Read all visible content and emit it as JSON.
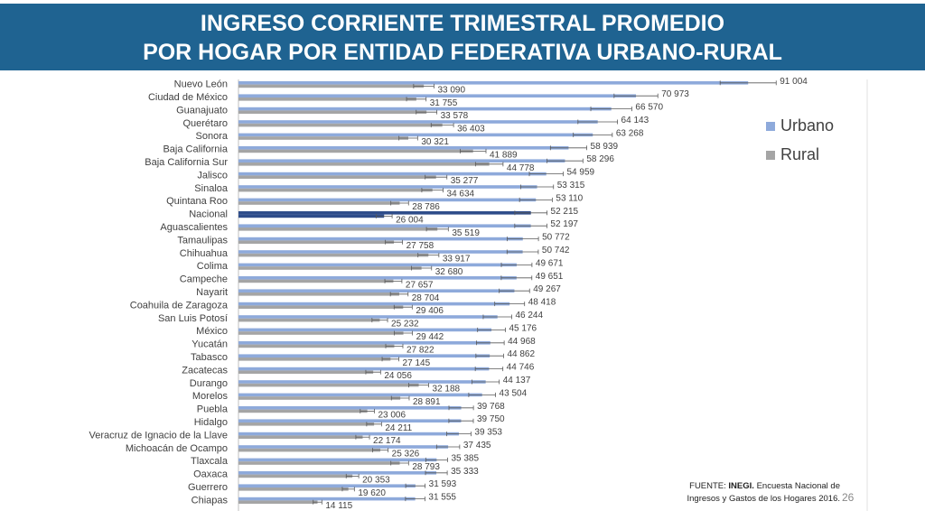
{
  "slide": {
    "title_line1": "INGRESO CORRIENTE TRIMESTRAL PROMEDIO",
    "title_line2": "POR HOGAR POR ENTIDAD FEDERATIVA URBANO-RURAL",
    "source_prefix": "FUENTE:",
    "source_org": "INEGI.",
    "source_text": "Encuesta Nacional de Ingresos y Gastos de los Hogares 2016.",
    "page_number": "26"
  },
  "chart_data": {
    "type": "bar",
    "orientation": "horizontal",
    "title": "",
    "xlabel": "",
    "ylabel": "",
    "xlim": [
      0,
      100000
    ],
    "grid": false,
    "error_bars": true,
    "legend_position": "right",
    "categories": [
      "Nuevo León",
      "Ciudad de México",
      "Guanajuato",
      "Querétaro",
      "Sonora",
      "Baja California",
      "Baja California Sur",
      "Jalisco",
      "Sinaloa",
      "Quintana Roo",
      "Nacional",
      "Aguascalientes",
      "Tamaulipas",
      "Chihuahua",
      "Colima",
      "Campeche",
      "Nayarit",
      "Coahuila de Zaragoza",
      "San Luis Potosí",
      "México",
      "Yucatán",
      "Tabasco",
      "Zacatecas",
      "Durango",
      "Morelos",
      "Puebla",
      "Hidalgo",
      "Veracruz de Ignacio de la Llave",
      "Michoacán de Ocampo",
      "Tlaxcala",
      "Oaxaca",
      "Guerrero",
      "Chiapas"
    ],
    "highlight_category": "Nacional",
    "series": [
      {
        "name": "Urbano",
        "color": "#8eaadb",
        "highlight_color": "#2f4d8a",
        "values": [
          91004,
          70973,
          66570,
          64143,
          63268,
          58939,
          58296,
          54959,
          53315,
          53110,
          52215,
          52197,
          50772,
          50742,
          49671,
          49651,
          49267,
          48418,
          46244,
          45176,
          44968,
          44862,
          44746,
          44137,
          43504,
          39768,
          39750,
          39353,
          37435,
          35385,
          35333,
          31593,
          31555
        ],
        "labels": [
          "91 004",
          "70 973",
          "66 570",
          "64 143",
          "63 268",
          "58 939",
          "58 296",
          "54 959",
          "53 315",
          "53 110",
          "52 215",
          "52 197",
          "50 772",
          "50 742",
          "49 671",
          "49 651",
          "49 267",
          "48 418",
          "46 244",
          "45 176",
          "44 968",
          "44 862",
          "44 746",
          "44 137",
          "43 504",
          "39 768",
          "39 750",
          "39 353",
          "37 435",
          "35 385",
          "35 333",
          "31 593",
          "31 555"
        ]
      },
      {
        "name": "Rural",
        "color": "#a5a5a5",
        "highlight_color": "#2f4d8a",
        "values": [
          33090,
          31755,
          33578,
          36403,
          30321,
          41889,
          44778,
          35277,
          34634,
          28786,
          26004,
          35519,
          27758,
          33917,
          32680,
          27657,
          28704,
          29406,
          25232,
          29442,
          27822,
          27145,
          24056,
          32188,
          28891,
          23006,
          24211,
          22174,
          25326,
          28793,
          20353,
          19620,
          14115
        ],
        "labels": [
          "33 090",
          "31 755",
          "33 578",
          "36 403",
          "30 321",
          "41 889",
          "44 778",
          "35 277",
          "34 634",
          "28 786",
          "26 004",
          "35 519",
          "27 758",
          "33 917",
          "32 680",
          "27 657",
          "28 704",
          "29 406",
          "25 232",
          "29 442",
          "27 822",
          "27 145",
          "24 056",
          "32 188",
          "28 891",
          "23 006",
          "24 211",
          "22 174",
          "25 326",
          "28 793",
          "20 353",
          "19 620",
          "14 115"
        ]
      }
    ]
  }
}
